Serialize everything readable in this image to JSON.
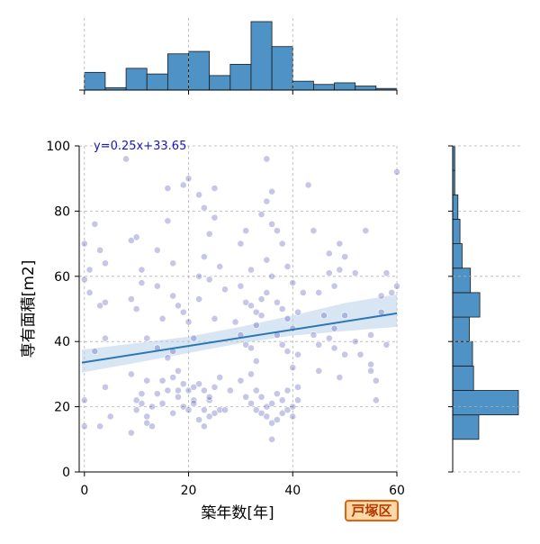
{
  "chart_data": {
    "type": "scatter",
    "xlabel": "築年数[年]",
    "ylabel": "専有面積[m2]",
    "xlim": [
      -1,
      60
    ],
    "ylim": [
      0,
      100
    ],
    "x_ticks": [
      0,
      20,
      40,
      60
    ],
    "y_ticks": [
      0,
      20,
      40,
      60,
      80,
      100
    ],
    "x_tick_labels": [
      "0",
      "20",
      "40",
      "60"
    ],
    "y_tick_labels": [
      "0",
      "20",
      "40",
      "60",
      "80",
      "100"
    ],
    "grid": true,
    "regression": {
      "label": "y=0.25x+33.65",
      "slope": 0.25,
      "intercept": 33.65,
      "ci_band": [
        [
          -0.5,
          30.5,
          37.5
        ],
        [
          10,
          33.5,
          39.5
        ],
        [
          20,
          36.5,
          41.5
        ],
        [
          30,
          39.5,
          44.5
        ],
        [
          40,
          41.8,
          48.0
        ],
        [
          50,
          43.2,
          51.8
        ],
        [
          60,
          44.5,
          54.5
        ]
      ]
    },
    "points": [
      [
        0,
        14
      ],
      [
        0,
        22
      ],
      [
        0,
        59
      ],
      [
        0,
        70
      ],
      [
        1,
        55
      ],
      [
        1,
        62
      ],
      [
        2,
        76
      ],
      [
        3,
        68
      ],
      [
        3,
        51
      ],
      [
        2,
        37
      ],
      [
        4,
        64
      ],
      [
        4,
        52
      ],
      [
        4,
        41
      ],
      [
        4,
        26
      ],
      [
        5,
        17
      ],
      [
        3,
        14
      ],
      [
        8,
        96
      ],
      [
        9,
        71
      ],
      [
        10,
        72
      ],
      [
        9,
        53
      ],
      [
        10,
        50
      ],
      [
        11,
        62
      ],
      [
        11,
        58
      ],
      [
        12,
        41
      ],
      [
        9,
        30
      ],
      [
        10,
        22
      ],
      [
        10,
        19
      ],
      [
        11,
        24
      ],
      [
        11,
        21
      ],
      [
        12,
        28
      ],
      [
        12,
        17
      ],
      [
        13,
        20
      ],
      [
        14,
        24
      ],
      [
        13,
        14
      ],
      [
        9,
        12
      ],
      [
        12,
        15
      ],
      [
        15,
        21
      ],
      [
        15,
        28
      ],
      [
        16,
        25
      ],
      [
        14,
        68
      ],
      [
        14,
        57
      ],
      [
        15,
        47
      ],
      [
        16,
        77
      ],
      [
        17,
        64
      ],
      [
        17,
        54
      ],
      [
        18,
        51
      ],
      [
        19,
        49
      ],
      [
        16,
        35
      ],
      [
        17,
        29
      ],
      [
        18,
        25
      ],
      [
        19,
        20
      ],
      [
        20,
        19
      ],
      [
        17,
        18
      ],
      [
        18,
        23
      ],
      [
        19,
        27
      ],
      [
        20,
        25
      ],
      [
        21,
        22
      ],
      [
        16,
        87
      ],
      [
        19,
        88
      ],
      [
        17,
        37
      ],
      [
        14,
        38
      ],
      [
        18,
        31
      ],
      [
        20,
        46
      ],
      [
        21,
        41
      ],
      [
        22,
        60
      ],
      [
        22,
        53
      ],
      [
        21,
        21
      ],
      [
        22,
        27
      ],
      [
        23,
        25
      ],
      [
        23,
        19
      ],
      [
        24,
        22
      ],
      [
        24,
        23
      ],
      [
        21,
        26
      ],
      [
        22,
        16
      ],
      [
        23,
        14
      ],
      [
        25,
        18
      ],
      [
        26,
        19
      ],
      [
        24,
        17
      ],
      [
        20,
        90
      ],
      [
        22,
        85
      ],
      [
        23,
        81
      ],
      [
        24,
        73
      ],
      [
        23,
        66
      ],
      [
        24,
        59
      ],
      [
        25,
        47
      ],
      [
        26,
        63
      ],
      [
        27,
        56
      ],
      [
        25,
        87
      ],
      [
        25,
        78
      ],
      [
        26,
        29
      ],
      [
        27,
        19
      ],
      [
        28,
        25
      ],
      [
        25,
        26
      ],
      [
        30,
        70
      ],
      [
        31,
        74
      ],
      [
        32,
        62
      ],
      [
        30,
        57
      ],
      [
        31,
        52
      ],
      [
        32,
        51
      ],
      [
        33,
        49
      ],
      [
        34,
        48
      ],
      [
        29,
        46
      ],
      [
        30,
        42
      ],
      [
        31,
        39
      ],
      [
        32,
        38
      ],
      [
        33,
        34
      ],
      [
        30,
        28
      ],
      [
        31,
        23
      ],
      [
        32,
        21
      ],
      [
        33,
        19
      ],
      [
        34,
        18
      ],
      [
        35,
        20
      ],
      [
        36,
        21
      ],
      [
        35,
        17
      ],
      [
        34,
        23
      ],
      [
        33,
        25
      ],
      [
        36,
        15
      ],
      [
        36,
        10
      ],
      [
        35,
        96
      ],
      [
        36,
        86
      ],
      [
        35,
        83
      ],
      [
        34,
        79
      ],
      [
        36,
        76
      ],
      [
        35,
        65
      ],
      [
        36,
        60
      ],
      [
        35,
        55
      ],
      [
        34,
        53
      ],
      [
        33,
        45
      ],
      [
        32,
        30
      ],
      [
        37,
        74
      ],
      [
        38,
        70
      ],
      [
        39,
        63
      ],
      [
        40,
        58
      ],
      [
        37,
        52
      ],
      [
        38,
        50
      ],
      [
        39,
        47
      ],
      [
        40,
        44
      ],
      [
        37,
        42
      ],
      [
        38,
        39
      ],
      [
        39,
        37
      ],
      [
        37,
        24
      ],
      [
        38,
        22
      ],
      [
        39,
        19
      ],
      [
        40,
        17
      ],
      [
        41,
        22
      ],
      [
        37,
        16
      ],
      [
        38,
        18
      ],
      [
        39,
        25
      ],
      [
        40,
        20
      ],
      [
        41,
        26
      ],
      [
        42,
        55
      ],
      [
        41,
        49
      ],
      [
        41,
        36
      ],
      [
        40,
        32
      ],
      [
        43,
        88
      ],
      [
        44,
        74
      ],
      [
        44,
        42
      ],
      [
        45,
        55
      ],
      [
        46,
        48
      ],
      [
        45,
        39
      ],
      [
        47,
        67
      ],
      [
        47,
        61
      ],
      [
        48,
        57
      ],
      [
        48,
        44
      ],
      [
        48,
        38
      ],
      [
        49,
        70
      ],
      [
        49,
        62
      ],
      [
        50,
        66
      ],
      [
        50,
        48
      ],
      [
        49,
        29
      ],
      [
        50,
        36
      ],
      [
        52,
        40
      ],
      [
        53,
        36
      ],
      [
        54,
        74
      ],
      [
        55,
        42
      ],
      [
        55,
        31
      ],
      [
        55,
        33
      ],
      [
        56,
        28
      ],
      [
        56,
        22
      ],
      [
        57,
        49
      ],
      [
        58,
        39
      ],
      [
        59,
        55
      ],
      [
        60,
        92
      ],
      [
        58,
        61
      ],
      [
        60,
        57
      ],
      [
        45,
        31
      ],
      [
        47,
        41
      ],
      [
        52,
        61
      ],
      [
        57,
        54
      ]
    ],
    "top_histogram": {
      "bin_edges": [
        0,
        4,
        8,
        12,
        16,
        20,
        24,
        28,
        32,
        36,
        40,
        44,
        48,
        52,
        56,
        60
      ],
      "counts": [
        22,
        3,
        27,
        20,
        45,
        48,
        18,
        32,
        85,
        54,
        11,
        7,
        9,
        5,
        2
      ]
    },
    "right_histogram": {
      "bin_edges": [
        10,
        17.5,
        25,
        32.5,
        40,
        47.5,
        55,
        62.5,
        70,
        77.5,
        85,
        92.5,
        100
      ],
      "counts": [
        25,
        63,
        20,
        19,
        16,
        26,
        17,
        9,
        7,
        5,
        2,
        2
      ]
    }
  },
  "badge": {
    "label": "戸塚区"
  },
  "colors": {
    "point": "#3333aa",
    "line": "#2b77b4",
    "band": "#b8d2ea",
    "bar": "#4f93c6",
    "annotation": "#1a1aaa",
    "badge_border": "#e8600b",
    "badge_fill": "#ffd8a8"
  }
}
